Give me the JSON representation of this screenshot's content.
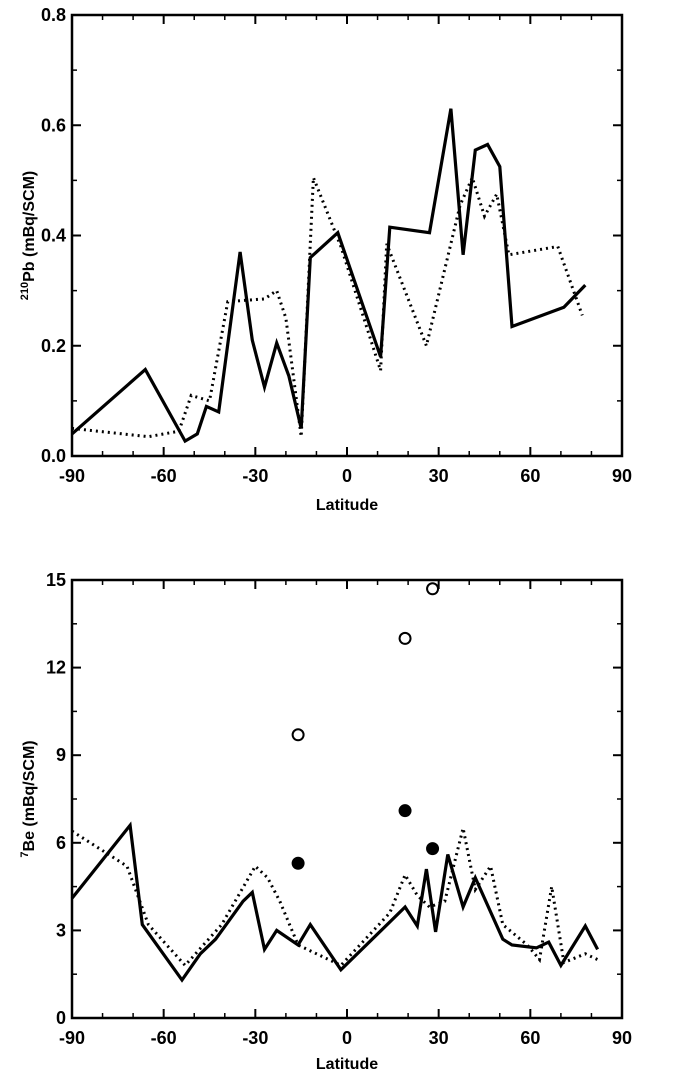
{
  "chart_data": [
    {
      "type": "line",
      "xlabel": "Latitude",
      "ylabel_super": "210",
      "ylabel_main": "Pb  (mBq/SCM)",
      "xlim": [
        -90,
        90
      ],
      "ylim": [
        0.0,
        0.8
      ],
      "xticks": [
        -90,
        -60,
        -30,
        0,
        30,
        60,
        90
      ],
      "xtick_labels": [
        "-90",
        "-60",
        "-30",
        "0",
        "30",
        "60",
        "90"
      ],
      "yticks": [
        0.0,
        0.2,
        0.4,
        0.6,
        0.8
      ],
      "ytick_labels": [
        "0.0",
        "0.2",
        "0.4",
        "0.6",
        "0.8"
      ],
      "series": [
        {
          "style": "solid",
          "points": [
            [
              -90,
              0.04
            ],
            [
              -66,
              0.157
            ],
            [
              -53,
              0.027
            ],
            [
              -49,
              0.04
            ],
            [
              -46,
              0.09
            ],
            [
              -42,
              0.08
            ],
            [
              -35,
              0.37
            ],
            [
              -31,
              0.21
            ],
            [
              -27,
              0.125
            ],
            [
              -23,
              0.205
            ],
            [
              -19,
              0.145
            ],
            [
              -15,
              0.05
            ],
            [
              -12,
              0.36
            ],
            [
              -3,
              0.405
            ],
            [
              11,
              0.18
            ],
            [
              14,
              0.415
            ],
            [
              27,
              0.405
            ],
            [
              34,
              0.63
            ],
            [
              38,
              0.365
            ],
            [
              42,
              0.555
            ],
            [
              46,
              0.565
            ],
            [
              50,
              0.525
            ],
            [
              54,
              0.235
            ],
            [
              71,
              0.27
            ],
            [
              78,
              0.31
            ]
          ]
        },
        {
          "style": "dotted",
          "points": [
            [
              -90,
              0.05
            ],
            [
              -65,
              0.035
            ],
            [
              -55,
              0.045
            ],
            [
              -51,
              0.11
            ],
            [
              -45,
              0.1
            ],
            [
              -39,
              0.28
            ],
            [
              -27,
              0.285
            ],
            [
              -23,
              0.3
            ],
            [
              -20,
              0.25
            ],
            [
              -15,
              0.035
            ],
            [
              -11,
              0.505
            ],
            [
              -2,
              0.38
            ],
            [
              11,
              0.155
            ],
            [
              13,
              0.385
            ],
            [
              26,
              0.2
            ],
            [
              37,
              0.455
            ],
            [
              41,
              0.505
            ],
            [
              45,
              0.435
            ],
            [
              49,
              0.475
            ],
            [
              53,
              0.365
            ],
            [
              69,
              0.38
            ],
            [
              77,
              0.255
            ]
          ]
        }
      ]
    },
    {
      "type": "line",
      "xlabel": "Latitude",
      "ylabel_super": "7",
      "ylabel_main": "Be  (mBq/SCM)",
      "xlim": [
        -90,
        90
      ],
      "ylim": [
        0,
        15
      ],
      "xticks": [
        -90,
        -60,
        -30,
        0,
        30,
        60,
        90
      ],
      "xtick_labels": [
        "-90",
        "-60",
        "-30",
        "0",
        "30",
        "60",
        "90"
      ],
      "yticks": [
        0,
        3,
        6,
        9,
        12,
        15
      ],
      "ytick_labels": [
        "0",
        "3",
        "6",
        "9",
        "12",
        "15"
      ],
      "series": [
        {
          "style": "solid",
          "points": [
            [
              -90,
              4.1
            ],
            [
              -71,
              6.6
            ],
            [
              -67,
              3.2
            ],
            [
              -54,
              1.3
            ],
            [
              -48,
              2.2
            ],
            [
              -43,
              2.7
            ],
            [
              -34,
              4.0
            ],
            [
              -31,
              4.3
            ],
            [
              -27,
              2.35
            ],
            [
              -23,
              3.0
            ],
            [
              -16,
              2.5
            ],
            [
              -12,
              3.2
            ],
            [
              -2,
              1.65
            ],
            [
              19,
              3.8
            ],
            [
              23,
              3.15
            ],
            [
              26,
              5.1
            ],
            [
              29,
              2.95
            ],
            [
              33,
              5.6
            ],
            [
              38,
              3.8
            ],
            [
              42,
              4.8
            ],
            [
              51,
              2.7
            ],
            [
              54,
              2.5
            ],
            [
              62,
              2.4
            ],
            [
              66,
              2.6
            ],
            [
              70,
              1.8
            ],
            [
              78,
              3.15
            ],
            [
              82,
              2.35
            ]
          ]
        },
        {
          "style": "dotted",
          "points": [
            [
              -90,
              6.4
            ],
            [
              -72,
              5.2
            ],
            [
              -65,
              3.2
            ],
            [
              -53,
              1.8
            ],
            [
              -41,
              3.2
            ],
            [
              -30,
              5.2
            ],
            [
              -26,
              4.8
            ],
            [
              -22,
              4.0
            ],
            [
              -16,
              2.5
            ],
            [
              -2,
              1.8
            ],
            [
              14,
              3.6
            ],
            [
              19,
              4.9
            ],
            [
              23,
              4.2
            ],
            [
              27,
              3.8
            ],
            [
              32,
              4.0
            ],
            [
              38,
              6.5
            ],
            [
              42,
              4.4
            ],
            [
              47,
              5.2
            ],
            [
              51,
              3.2
            ],
            [
              59,
              2.5
            ],
            [
              63,
              2.0
            ],
            [
              67,
              4.5
            ],
            [
              71,
              1.9
            ],
            [
              78,
              2.2
            ],
            [
              82,
              2.0
            ]
          ]
        }
      ],
      "markers": [
        {
          "style": "open",
          "points": [
            [
              -16,
              9.7
            ],
            [
              19,
              13.0
            ],
            [
              28,
              14.7
            ]
          ]
        },
        {
          "style": "filled",
          "points": [
            [
              -16,
              5.3
            ],
            [
              19,
              7.1
            ],
            [
              28,
              5.8
            ]
          ]
        }
      ]
    }
  ]
}
